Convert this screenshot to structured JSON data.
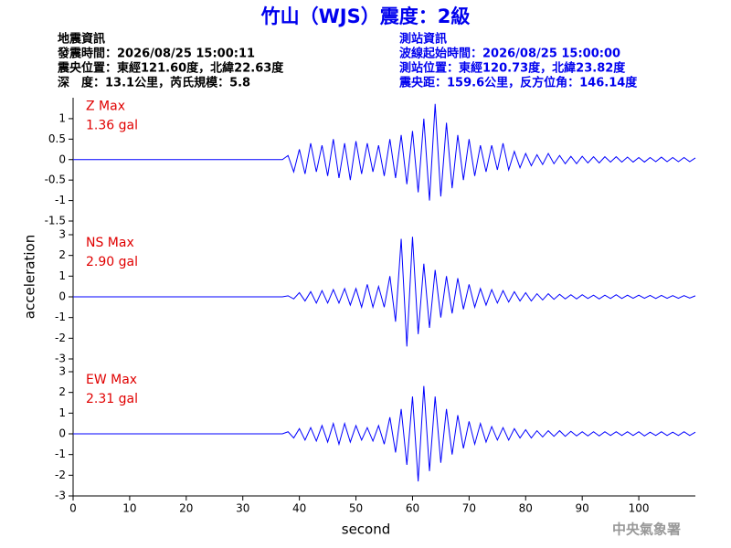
{
  "title": "竹山（WJS）震度：2級",
  "info_left": [
    "地震資訊",
    "發震時間：2026/08/25 15:00:11",
    "震央位置：東經121.60度，北緯22.63度",
    "深　度：13.1公里，芮氏規模：5.8"
  ],
  "info_right": [
    "測站資訊",
    "波線起始時間：2026/08/25 15:00:00",
    "測站位置：東經120.73度，北緯23.82度",
    "震央距：159.6公里，反方位角：146.14度"
  ],
  "footer": "中央氣象署",
  "chart_data": [
    {
      "type": "line",
      "color": "#0000ff",
      "label_color": "#e00000",
      "annotations": [
        "Z Max",
        "1.36 gal"
      ],
      "xlim": [
        0,
        110
      ],
      "ylim": [
        -1.5,
        1.5
      ],
      "yticks": [
        -1.5,
        -1,
        -0.5,
        0,
        0.5,
        1
      ],
      "x": [
        0,
        1,
        2,
        3,
        4,
        5,
        6,
        7,
        8,
        9,
        10,
        11,
        12,
        13,
        14,
        15,
        16,
        17,
        18,
        19,
        20,
        21,
        22,
        23,
        24,
        25,
        26,
        27,
        28,
        29,
        30,
        31,
        32,
        33,
        34,
        35,
        36,
        37,
        38,
        39,
        40,
        41,
        42,
        43,
        44,
        45,
        46,
        47,
        48,
        49,
        50,
        51,
        52,
        53,
        54,
        55,
        56,
        57,
        58,
        59,
        60,
        61,
        62,
        63,
        64,
        65,
        66,
        67,
        68,
        69,
        70,
        71,
        72,
        73,
        74,
        75,
        76,
        77,
        78,
        79,
        80,
        81,
        82,
        83,
        84,
        85,
        86,
        87,
        88,
        89,
        90,
        91,
        92,
        93,
        94,
        95,
        96,
        97,
        98,
        99,
        100,
        101,
        102,
        103,
        104,
        105,
        106,
        107,
        108,
        109,
        110
      ],
      "values": [
        0,
        0,
        0,
        0,
        0,
        0,
        0,
        0,
        0,
        0,
        0,
        0,
        0,
        0,
        0,
        0,
        0,
        0,
        0,
        0,
        0,
        0,
        0,
        0,
        0,
        0,
        0,
        0,
        0,
        0,
        0,
        0,
        0,
        0,
        0,
        0,
        0,
        0,
        0.1,
        -0.3,
        0.25,
        -0.35,
        0.4,
        -0.3,
        0.35,
        -0.4,
        0.5,
        -0.45,
        0.4,
        -0.5,
        0.45,
        -0.35,
        0.4,
        -0.3,
        0.35,
        -0.4,
        0.5,
        -0.45,
        0.6,
        -0.6,
        0.7,
        -0.8,
        1.0,
        -1.0,
        1.36,
        -0.9,
        0.9,
        -0.7,
        0.6,
        -0.5,
        0.5,
        -0.4,
        0.35,
        -0.3,
        0.35,
        -0.25,
        0.4,
        -0.25,
        0.2,
        -0.2,
        0.15,
        -0.15,
        0.12,
        -0.12,
        0.15,
        -0.1,
        0.1,
        -0.1,
        0.08,
        -0.1,
        0.08,
        -0.08,
        0.07,
        -0.08,
        0.07,
        -0.06,
        0.07,
        -0.06,
        0.06,
        -0.06,
        0.05,
        -0.06,
        0.05,
        -0.05,
        0.06,
        -0.05,
        0.05,
        -0.05,
        0.05,
        -0.05,
        0.04
      ]
    },
    {
      "type": "line",
      "color": "#0000ff",
      "label_color": "#e00000",
      "annotations": [
        "NS Max",
        "2.90 gal"
      ],
      "ylabel": "acceleration",
      "xlim": [
        0,
        110
      ],
      "ylim": [
        -3,
        3
      ],
      "yticks": [
        -3,
        -2,
        -1,
        0,
        1,
        2,
        3
      ],
      "x": [
        0,
        1,
        2,
        3,
        4,
        5,
        6,
        7,
        8,
        9,
        10,
        11,
        12,
        13,
        14,
        15,
        16,
        17,
        18,
        19,
        20,
        21,
        22,
        23,
        24,
        25,
        26,
        27,
        28,
        29,
        30,
        31,
        32,
        33,
        34,
        35,
        36,
        37,
        38,
        39,
        40,
        41,
        42,
        43,
        44,
        45,
        46,
        47,
        48,
        49,
        50,
        51,
        52,
        53,
        54,
        55,
        56,
        57,
        58,
        59,
        60,
        61,
        62,
        63,
        64,
        65,
        66,
        67,
        68,
        69,
        70,
        71,
        72,
        73,
        74,
        75,
        76,
        77,
        78,
        79,
        80,
        81,
        82,
        83,
        84,
        85,
        86,
        87,
        88,
        89,
        90,
        91,
        92,
        93,
        94,
        95,
        96,
        97,
        98,
        99,
        100,
        101,
        102,
        103,
        104,
        105,
        106,
        107,
        108,
        109,
        110
      ],
      "values": [
        0,
        0,
        0,
        0,
        0,
        0,
        0,
        0,
        0,
        0,
        0,
        0,
        0,
        0,
        0,
        0,
        0,
        0,
        0,
        0,
        0,
        0,
        0,
        0,
        0,
        0,
        0,
        0,
        0,
        0,
        0,
        0,
        0,
        0,
        0,
        0,
        0,
        0,
        0.05,
        -0.1,
        0.2,
        -0.2,
        0.25,
        -0.3,
        0.3,
        -0.3,
        0.35,
        -0.3,
        0.4,
        -0.4,
        0.4,
        -0.5,
        0.6,
        -0.5,
        0.5,
        -0.5,
        1.0,
        -1.2,
        2.8,
        -2.4,
        2.9,
        -1.8,
        1.6,
        -1.5,
        1.3,
        -1.0,
        1.0,
        -0.8,
        0.9,
        -0.6,
        0.6,
        -0.5,
        0.4,
        -0.4,
        0.35,
        -0.3,
        0.3,
        -0.25,
        0.25,
        -0.2,
        0.2,
        -0.2,
        0.15,
        -0.15,
        0.15,
        -0.12,
        0.12,
        -0.1,
        0.1,
        -0.1,
        0.1,
        -0.08,
        0.08,
        -0.1,
        0.08,
        -0.08,
        0.1,
        -0.08,
        0.08,
        -0.07,
        0.08,
        -0.07,
        0.07,
        -0.08,
        0.07,
        -0.07,
        0.06,
        -0.07,
        0.06,
        -0.06,
        0.05
      ]
    },
    {
      "type": "line",
      "color": "#0000ff",
      "label_color": "#e00000",
      "annotations": [
        "EW Max",
        "2.31 gal"
      ],
      "xlabel": "second",
      "xlim": [
        0,
        110
      ],
      "xticks": [
        0,
        10,
        20,
        30,
        40,
        50,
        60,
        70,
        80,
        90,
        100
      ],
      "ylim": [
        -3,
        3
      ],
      "yticks": [
        -3,
        -2,
        -1,
        0,
        1,
        2,
        3
      ],
      "x": [
        0,
        1,
        2,
        3,
        4,
        5,
        6,
        7,
        8,
        9,
        10,
        11,
        12,
        13,
        14,
        15,
        16,
        17,
        18,
        19,
        20,
        21,
        22,
        23,
        24,
        25,
        26,
        27,
        28,
        29,
        30,
        31,
        32,
        33,
        34,
        35,
        36,
        37,
        38,
        39,
        40,
        41,
        42,
        43,
        44,
        45,
        46,
        47,
        48,
        49,
        50,
        51,
        52,
        53,
        54,
        55,
        56,
        57,
        58,
        59,
        60,
        61,
        62,
        63,
        64,
        65,
        66,
        67,
        68,
        69,
        70,
        71,
        72,
        73,
        74,
        75,
        76,
        77,
        78,
        79,
        80,
        81,
        82,
        83,
        84,
        85,
        86,
        87,
        88,
        89,
        90,
        91,
        92,
        93,
        94,
        95,
        96,
        97,
        98,
        99,
        100,
        101,
        102,
        103,
        104,
        105,
        106,
        107,
        108,
        109,
        110
      ],
      "values": [
        0,
        0,
        0,
        0,
        0,
        0,
        0,
        0,
        0,
        0,
        0,
        0,
        0,
        0,
        0,
        0,
        0,
        0,
        0,
        0,
        0,
        0,
        0,
        0,
        0,
        0,
        0,
        0,
        0,
        0,
        0,
        0,
        0,
        0,
        0,
        0,
        0,
        0,
        0.1,
        -0.2,
        0.25,
        -0.3,
        0.3,
        -0.35,
        0.4,
        -0.4,
        0.5,
        -0.5,
        0.5,
        -0.4,
        0.4,
        -0.3,
        0.3,
        -0.35,
        0.4,
        -0.5,
        0.8,
        -0.9,
        1.2,
        -1.5,
        1.8,
        -2.3,
        2.31,
        -1.8,
        1.8,
        -1.4,
        1.2,
        -1.0,
        0.9,
        -0.7,
        0.6,
        -0.5,
        0.5,
        -0.4,
        0.35,
        -0.3,
        0.3,
        -0.3,
        0.25,
        -0.2,
        0.2,
        -0.2,
        0.15,
        -0.15,
        0.15,
        -0.12,
        0.15,
        -0.12,
        0.12,
        -0.1,
        0.1,
        -0.1,
        0.1,
        -0.1,
        0.1,
        -0.08,
        0.1,
        -0.08,
        0.1,
        -0.08,
        0.1,
        -0.1,
        0.08,
        -0.08,
        0.1,
        -0.08,
        0.08,
        -0.08,
        0.1,
        -0.08,
        0.08
      ]
    }
  ]
}
